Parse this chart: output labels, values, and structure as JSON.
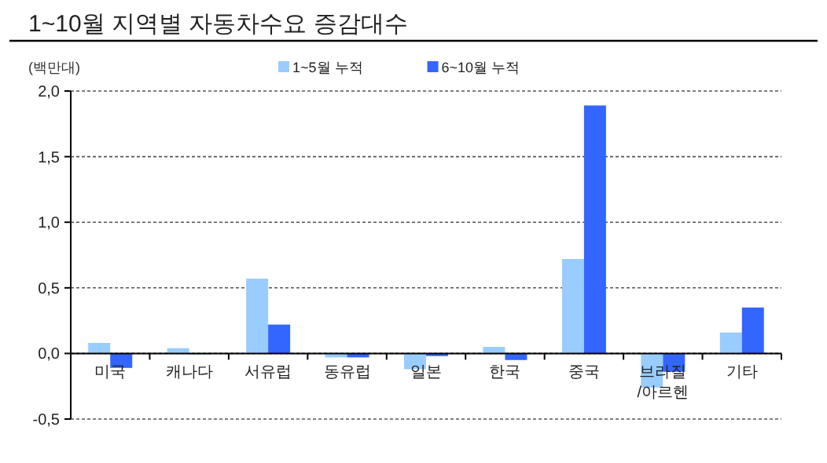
{
  "chart_data": {
    "type": "bar",
    "title": "1~10월 지역별 자동차수요 증감대수",
    "ylabel": "(백만대)",
    "categories": [
      "미국",
      "캐나다",
      "서유럽",
      "동유럽",
      "일본",
      "한국",
      "중국",
      "브라질\n/아르헨",
      "기타"
    ],
    "series": [
      {
        "name": "1~5월 누적",
        "color": "#99ccff",
        "values": [
          0.08,
          0.04,
          0.57,
          -0.03,
          -0.12,
          0.05,
          0.72,
          -0.26,
          0.16
        ]
      },
      {
        "name": "6~10월 누적",
        "color": "#3366ff",
        "values": [
          -0.11,
          0.0,
          0.22,
          -0.03,
          -0.02,
          -0.05,
          1.89,
          -0.14,
          0.35
        ]
      }
    ],
    "ylim": [
      -0.5,
      2.0
    ],
    "yticks": [
      {
        "value": -0.5,
        "label": "-0,5"
      },
      {
        "value": 0,
        "label": "0,0"
      },
      {
        "value": 0.5,
        "label": "0,5"
      },
      {
        "value": 1.0,
        "label": "1,0"
      },
      {
        "value": 1.5,
        "label": "1,5"
      },
      {
        "value": 2.0,
        "label": "2,0"
      }
    ],
    "grid": "y",
    "legend": "top"
  }
}
